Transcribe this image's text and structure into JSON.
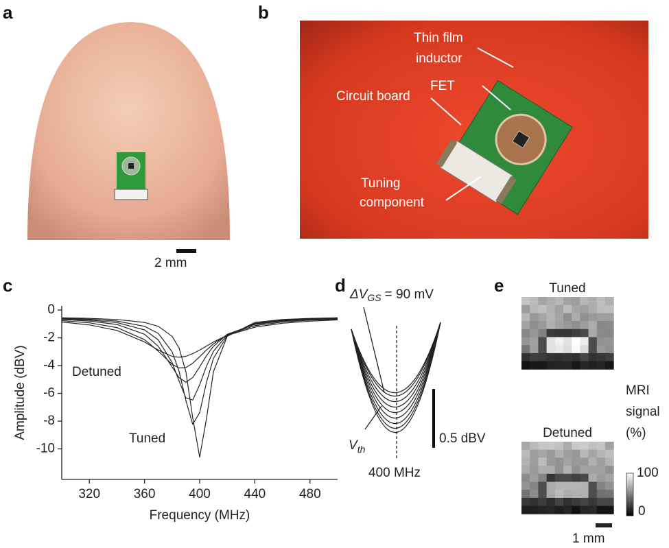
{
  "panels": {
    "a": {
      "label": "a",
      "scale_bar": "2 mm"
    },
    "b": {
      "label": "b",
      "annotations": [
        "Thin film",
        "inductor",
        "FET",
        "Circuit board",
        "Tuning",
        "component"
      ]
    },
    "c": {
      "label": "c"
    },
    "d": {
      "label": "d",
      "delta_symbol": "ΔV",
      "delta_subscript": "GS",
      "delta_value": "= 90 mV",
      "vth_symbol": "V",
      "vth_subscript": "th",
      "scale_bar": "0.5 dBV",
      "center": "400 MHz"
    },
    "e": {
      "label": "e",
      "top_title": "Tuned",
      "bottom_title": "Detuned",
      "colorbar_title": [
        "MRI",
        "signal",
        "(%)"
      ],
      "colorbar_max": "100",
      "colorbar_min": "0",
      "scale_bar": "1 mm"
    }
  },
  "chart_data": {
    "type": "line",
    "xlabel": "Frequency (MHz)",
    "ylabel": "Amplitude (dBV)",
    "x": [
      300,
      320,
      340,
      360,
      370,
      380,
      385,
      390,
      395,
      400,
      405,
      410,
      420,
      440,
      460,
      480,
      500
    ],
    "series": [
      {
        "color": "#222222",
        "values": [
          -0.56,
          -0.6,
          -0.68,
          -0.89,
          -1.17,
          -1.89,
          -2.73,
          -4.44,
          -7.77,
          -10.6,
          -7.77,
          -4.44,
          -1.89,
          -0.89,
          -0.68,
          -0.6,
          -0.56
        ]
      },
      {
        "color": "#222222",
        "values": [
          -0.6,
          -0.66,
          -0.79,
          -1.17,
          -1.68,
          -3.0,
          -4.4,
          -6.51,
          -8.24,
          -7.39,
          -5.17,
          -3.48,
          -1.85,
          -0.96,
          -0.72,
          -0.63,
          -0.59
        ]
      },
      {
        "color": "#222222",
        "values": [
          -0.64,
          -0.72,
          -0.9,
          -1.43,
          -2.15,
          -3.78,
          -5.1,
          -6.33,
          -6.48,
          -5.38,
          -4.02,
          -2.97,
          -1.79,
          -1.0,
          -0.76,
          -0.65,
          -0.6
        ]
      },
      {
        "color": "#222222",
        "values": [
          -0.68,
          -0.79,
          -1.04,
          -1.74,
          -2.61,
          -4.09,
          -4.86,
          -5.2,
          -4.86,
          -4.09,
          -3.27,
          -2.61,
          -1.74,
          -1.04,
          -0.79,
          -0.68,
          -0.62
        ]
      },
      {
        "color": "#222222",
        "values": [
          -0.76,
          -0.92,
          -1.26,
          -2.13,
          -2.96,
          -3.91,
          -4.17,
          -4.14,
          -3.83,
          -3.36,
          -2.87,
          -2.43,
          -1.78,
          -1.13,
          -0.86,
          -0.73,
          -0.66
        ]
      },
      {
        "color": "#222222",
        "values": [
          -0.86,
          -1.07,
          -1.47,
          -2.3,
          -2.88,
          -3.33,
          -3.4,
          -3.33,
          -3.14,
          -2.88,
          -2.59,
          -2.3,
          -1.82,
          -1.23,
          -0.95,
          -0.8,
          -0.71
        ]
      }
    ],
    "xlim": [
      300,
      500
    ],
    "ylim": [
      -12.2,
      0.3
    ],
    "xticks": [
      320,
      360,
      400,
      440,
      480
    ],
    "yticks": [
      0,
      -2,
      -4,
      -6,
      -8,
      -10
    ],
    "annotations": [
      {
        "text": "Detuned"
      },
      {
        "text": "Tuned"
      }
    ]
  }
}
